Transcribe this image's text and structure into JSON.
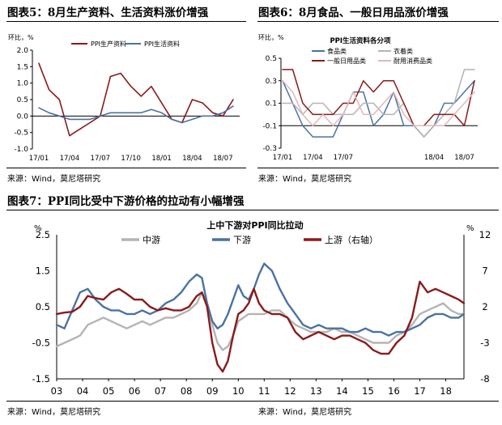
{
  "figure5": {
    "title": "图表5：8月生产资料、生活资料涨价增强",
    "source": "来源：Wind，莫尼塔研究"
  },
  "figure6": {
    "title": "图表6：8月食品、一般日用品涨价增强",
    "source": "来源：Wind，莫尼塔研究"
  },
  "figure7": {
    "title": "图表7：PPI同比受中下游价格的拉动有小幅增强",
    "source_left": "来源：Wind，莫尼塔研究",
    "source_right": "来源：Wind，莫尼塔研究"
  },
  "chart_data": [
    {
      "type": "line",
      "id": "fig5",
      "ylabel": "环比，%",
      "ylim": [
        -1.0,
        2.0
      ],
      "yticks": [
        -1.0,
        -0.5,
        0.0,
        0.5,
        1.0,
        1.5,
        2.0
      ],
      "ytick_labels": [
        "-1.0",
        "-0.5",
        "0.0",
        "0.5",
        "1.0",
        "1.5",
        "2.0"
      ],
      "x": [
        "17/01",
        "17/02",
        "17/03",
        "17/04",
        "17/05",
        "17/06",
        "17/07",
        "17/08",
        "17/09",
        "17/10",
        "17/11",
        "17/12",
        "18/01",
        "18/02",
        "18/03",
        "18/04",
        "18/05",
        "18/06",
        "18/07",
        "18/08"
      ],
      "xtick_labels": [
        "17/01",
        "17/04",
        "17/07",
        "17/10",
        "18/01",
        "18/04",
        "18/07"
      ],
      "legend_position": "top-center",
      "series": [
        {
          "name": "PPI生产资料",
          "color": "#8b1a1a",
          "values": [
            1.6,
            0.8,
            0.5,
            -0.6,
            -0.4,
            -0.2,
            0.0,
            1.2,
            1.3,
            0.9,
            0.6,
            0.9,
            0.4,
            -0.1,
            -0.2,
            0.5,
            0.4,
            0.1,
            0.0,
            0.5
          ]
        },
        {
          "name": "PPI生活资料",
          "color": "#4a72a3",
          "values": [
            0.25,
            0.1,
            0.0,
            -0.1,
            -0.1,
            -0.1,
            0.0,
            0.1,
            0.1,
            0.1,
            0.1,
            0.2,
            0.1,
            -0.1,
            -0.2,
            -0.1,
            0.0,
            0.0,
            0.1,
            0.3
          ]
        }
      ]
    },
    {
      "type": "line",
      "id": "fig6",
      "title": "PPI生活资料各分项",
      "ylabel": "环比，%",
      "ylim": [
        -0.3,
        0.5
      ],
      "yticks": [
        -0.3,
        -0.1,
        0.1,
        0.3,
        0.5
      ],
      "ytick_labels": [
        "-0.3",
        "-0.1",
        "0.1",
        "0.3",
        "0.5"
      ],
      "x": [
        "17/01",
        "17/02",
        "17/03",
        "17/04",
        "17/05",
        "17/06",
        "17/07",
        "17/08",
        "17/09",
        "17/10",
        "17/11",
        "17/12",
        "18/01",
        "18/02",
        "18/03",
        "18/04",
        "18/05",
        "18/06",
        "18/07",
        "18/08"
      ],
      "xtick_labels": [
        "17/01",
        "17/04",
        "17/07",
        "18/04",
        "18/07"
      ],
      "legend_position": "top-center",
      "series": [
        {
          "name": "食品类",
          "color": "#4a72a3",
          "values": [
            0.3,
            0.1,
            -0.1,
            -0.2,
            -0.2,
            -0.2,
            0.0,
            0.2,
            0.2,
            -0.1,
            0.0,
            0.2,
            -0.1,
            -0.1,
            -0.2,
            -0.1,
            0.1,
            0.1,
            0.2,
            0.3
          ]
        },
        {
          "name": "衣着类",
          "color": "#b4b4b4",
          "values": [
            0.1,
            0.1,
            0.0,
            0.1,
            0.1,
            0.0,
            0.0,
            0.0,
            0.1,
            0.1,
            0.0,
            0.0,
            0.1,
            -0.1,
            -0.2,
            -0.1,
            0.0,
            0.1,
            0.4,
            0.4
          ]
        },
        {
          "name": "一般日用品类",
          "color": "#8b1a1a",
          "values": [
            0.4,
            0.4,
            0.1,
            0.0,
            0.0,
            0.0,
            0.1,
            0.1,
            0.3,
            0.2,
            0.3,
            0.3,
            0.1,
            -0.1,
            -0.1,
            0.0,
            0.0,
            0.0,
            -0.1,
            0.3
          ]
        },
        {
          "name": "耐用消费品类",
          "color": "#e3b7b7",
          "values": [
            0.3,
            0.2,
            0.0,
            -0.1,
            0.0,
            -0.1,
            0.0,
            0.2,
            0.0,
            0.0,
            0.1,
            0.2,
            0.0,
            -0.1,
            -0.1,
            -0.1,
            -0.1,
            0.0,
            0.1,
            0.2
          ]
        }
      ]
    },
    {
      "type": "line",
      "id": "fig7",
      "title": "上中下游对PPI同比拉动",
      "ylabel_left": "%",
      "ylabel_right": "%",
      "ylim_left": [
        -1.5,
        2.5
      ],
      "ylim_right": [
        -8,
        12
      ],
      "yticks_left": [
        -1.5,
        -0.5,
        0.5,
        1.5,
        2.5
      ],
      "yticks_right": [
        -8,
        -3,
        2,
        7,
        12
      ],
      "xtick_labels": [
        "03",
        "04",
        "05",
        "06",
        "07",
        "08",
        "09",
        "10",
        "11",
        "12",
        "13",
        "14",
        "15",
        "16",
        "17",
        "18"
      ],
      "x_start": 2003.0,
      "x_end": 2018.7,
      "legend_position": "top-center",
      "series": [
        {
          "name": "中游",
          "axis": "left",
          "color": "#b4b4b4",
          "x": [
            2003.0,
            2003.3,
            2003.6,
            2003.9,
            2004.2,
            2004.5,
            2004.8,
            2005.1,
            2005.4,
            2005.7,
            2006.0,
            2006.3,
            2006.6,
            2006.9,
            2007.2,
            2007.5,
            2007.8,
            2008.1,
            2008.4,
            2008.6,
            2008.8,
            2009.0,
            2009.2,
            2009.4,
            2009.6,
            2009.8,
            2010.0,
            2010.2,
            2010.4,
            2010.6,
            2010.8,
            2011.0,
            2011.3,
            2011.6,
            2011.9,
            2012.2,
            2012.5,
            2012.8,
            2013.1,
            2013.4,
            2013.7,
            2014.0,
            2014.3,
            2014.6,
            2014.9,
            2015.2,
            2015.5,
            2015.8,
            2016.1,
            2016.4,
            2016.7,
            2017.0,
            2017.3,
            2017.6,
            2017.9,
            2018.2,
            2018.5,
            2018.7
          ],
          "values": [
            -0.6,
            -0.5,
            -0.4,
            -0.3,
            0.0,
            0.1,
            0.2,
            0.1,
            0.0,
            -0.1,
            0.0,
            0.1,
            0.0,
            0.1,
            0.2,
            0.2,
            0.3,
            0.4,
            0.6,
            0.9,
            0.6,
            0.0,
            -0.5,
            -0.7,
            -0.6,
            -0.3,
            0.1,
            0.2,
            0.3,
            0.3,
            0.3,
            0.3,
            0.4,
            0.4,
            0.2,
            0.0,
            -0.1,
            -0.2,
            -0.2,
            -0.2,
            -0.1,
            -0.2,
            -0.2,
            -0.3,
            -0.4,
            -0.5,
            -0.5,
            -0.5,
            -0.3,
            -0.2,
            0.0,
            0.3,
            0.4,
            0.5,
            0.6,
            0.4,
            0.3,
            0.3
          ]
        },
        {
          "name": "下游",
          "axis": "left",
          "color": "#4a72a3",
          "x": [
            2003.0,
            2003.3,
            2003.6,
            2003.9,
            2004.2,
            2004.5,
            2004.8,
            2005.1,
            2005.4,
            2005.7,
            2006.0,
            2006.3,
            2006.6,
            2006.9,
            2007.2,
            2007.5,
            2007.8,
            2008.1,
            2008.4,
            2008.6,
            2008.8,
            2009.0,
            2009.2,
            2009.4,
            2009.6,
            2009.8,
            2010.0,
            2010.2,
            2010.4,
            2010.6,
            2010.8,
            2011.0,
            2011.3,
            2011.6,
            2011.9,
            2012.2,
            2012.5,
            2012.8,
            2013.1,
            2013.4,
            2013.7,
            2014.0,
            2014.3,
            2014.6,
            2014.9,
            2015.2,
            2015.5,
            2015.8,
            2016.1,
            2016.4,
            2016.7,
            2017.0,
            2017.3,
            2017.6,
            2017.9,
            2018.2,
            2018.5,
            2018.7
          ],
          "values": [
            0.0,
            -0.1,
            0.4,
            0.9,
            1.0,
            0.7,
            0.5,
            0.4,
            0.4,
            0.3,
            0.3,
            0.4,
            0.3,
            0.4,
            0.6,
            0.7,
            0.9,
            1.2,
            1.4,
            1.3,
            0.6,
            0.1,
            -0.1,
            0.0,
            0.3,
            0.7,
            1.1,
            0.8,
            0.7,
            1.0,
            1.4,
            1.7,
            1.5,
            1.0,
            0.6,
            0.3,
            0.0,
            -0.1,
            0.0,
            -0.1,
            -0.1,
            -0.1,
            -0.2,
            -0.2,
            -0.1,
            -0.2,
            -0.2,
            -0.3,
            -0.2,
            -0.2,
            -0.1,
            0.0,
            0.2,
            0.3,
            0.3,
            0.2,
            0.2,
            0.3
          ]
        },
        {
          "name": "上游（右轴）",
          "axis": "right",
          "color": "#8b1a1a",
          "x": [
            2003.0,
            2003.3,
            2003.6,
            2003.9,
            2004.2,
            2004.5,
            2004.8,
            2005.1,
            2005.4,
            2005.7,
            2006.0,
            2006.3,
            2006.6,
            2006.9,
            2007.2,
            2007.5,
            2007.8,
            2008.1,
            2008.4,
            2008.6,
            2008.8,
            2009.0,
            2009.2,
            2009.4,
            2009.6,
            2009.8,
            2010.0,
            2010.2,
            2010.4,
            2010.6,
            2010.8,
            2011.0,
            2011.3,
            2011.6,
            2011.9,
            2012.2,
            2012.5,
            2012.8,
            2013.1,
            2013.4,
            2013.7,
            2014.0,
            2014.3,
            2014.6,
            2014.9,
            2015.2,
            2015.5,
            2015.8,
            2016.1,
            2016.4,
            2016.7,
            2017.0,
            2017.3,
            2017.6,
            2017.9,
            2018.2,
            2018.5,
            2018.7
          ],
          "values": [
            1.0,
            1.2,
            1.3,
            2.0,
            3.5,
            3.2,
            3.0,
            4.0,
            4.5,
            3.8,
            3.0,
            3.0,
            2.0,
            1.5,
            1.8,
            1.5,
            1.5,
            2.0,
            3.5,
            4.0,
            2.0,
            -3.0,
            -6.0,
            -7.0,
            -5.5,
            -2.0,
            1.0,
            1.5,
            2.5,
            4.5,
            2.5,
            1.5,
            1.0,
            1.0,
            0.5,
            -1.5,
            -2.5,
            -2.0,
            -1.5,
            -2.0,
            -2.5,
            -2.0,
            -2.0,
            -2.5,
            -3.0,
            -4.0,
            -4.5,
            -4.5,
            -3.0,
            -2.0,
            0.5,
            5.5,
            4.0,
            4.5,
            4.0,
            3.5,
            3.0,
            2.5
          ]
        }
      ]
    }
  ]
}
